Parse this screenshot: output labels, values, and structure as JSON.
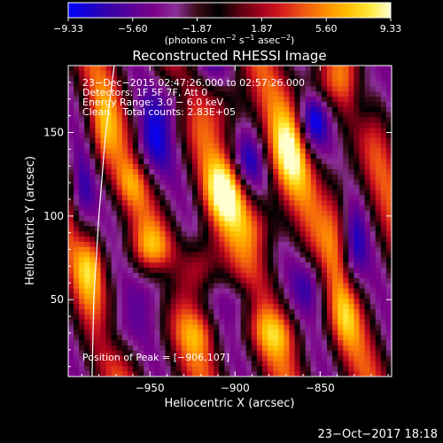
{
  "colorbar": {
    "tick_labels": [
      "-9.33",
      "-5.60",
      "-1.87",
      "1.87",
      "5.60",
      "9.33"
    ],
    "min": -9.33,
    "max": 9.33,
    "units": "(photons cm",
    "units_exp1": "−2",
    "units_mid": " s",
    "units_exp2": "−1",
    "units_mid2": " asec",
    "units_exp3": "−2",
    "units_close": ")",
    "colors": [
      "#0000ff",
      "#1a00c8",
      "#3a00a6",
      "#5c0096",
      "#7a0088",
      "#8b2f9a",
      "#3a0a16",
      "#000000",
      "#5c0010",
      "#a5001d",
      "#d71f1c",
      "#f05a10",
      "#ff8f00",
      "#ffbe00",
      "#ffe838",
      "#ffffd0"
    ]
  },
  "chart_data": {
    "type": "heatmap",
    "title": "Reconstructed RHESSI Image",
    "xlabel": "Heliocentric X (arcsec)",
    "ylabel": "Heliocentric Y (arcsec)",
    "xlim": [
      -998,
      -808
    ],
    "ylim": [
      4,
      190
    ],
    "x_ticks": [
      -950,
      -900,
      -850
    ],
    "y_ticks": [
      50,
      100,
      150
    ],
    "x_tick_labels": [
      "−950",
      "−900",
      "−850"
    ],
    "y_tick_labels": [
      "50",
      "100",
      "150"
    ],
    "annotations": [
      "23−Dec−2015 02:47:26.000 to 02:57:26.000",
      "Detectors: 1F 5F 7F, Att 0",
      "Energy Range: 3.0 − 6.0 keV",
      "Clean    Total counts: 2.83E+05"
    ],
    "peak_label": "Position of Peak = [−906,107]",
    "peak": {
      "x": -906,
      "y": 107,
      "value": 9.33
    },
    "min_value": -9.33,
    "max_value": 9.33,
    "limb_curve": [
      [
        -984,
        4
      ],
      [
        -983,
        50
      ],
      [
        -980,
        100
      ],
      [
        -976,
        150
      ],
      [
        -971,
        190
      ]
    ]
  },
  "footer": {
    "timestamp": "23−Oct−2017 18:18"
  }
}
